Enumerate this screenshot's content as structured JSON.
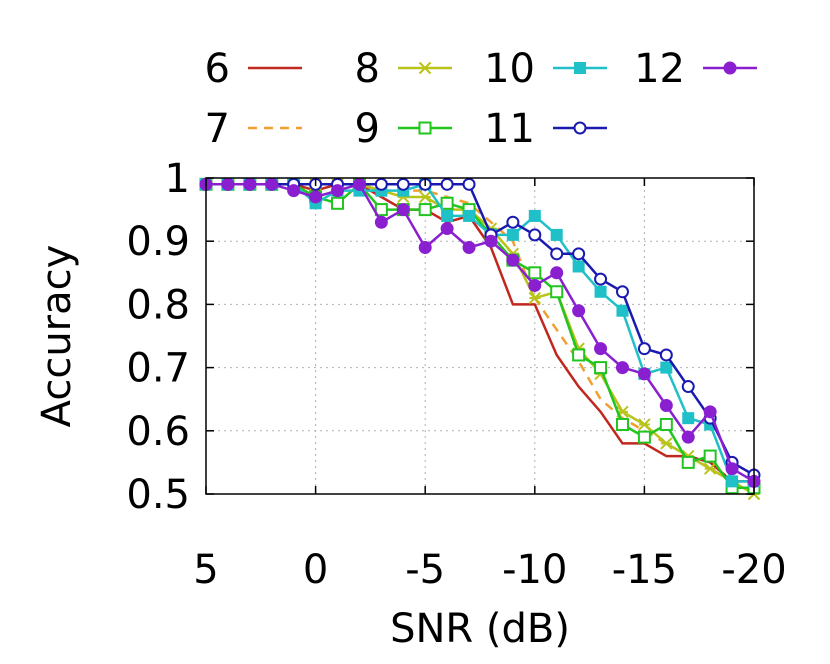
{
  "chart_data": {
    "type": "line",
    "xlabel": "SNR (dB)",
    "ylabel": "Accuracy",
    "xlim": [
      5,
      -20
    ],
    "ylim": [
      0.5,
      1
    ],
    "x_reversed": true,
    "grid": true,
    "legend_position": "top",
    "x_ticks": [
      5,
      0,
      -5,
      -10,
      -15,
      -20
    ],
    "y_ticks": [
      0.5,
      0.6,
      0.7,
      0.8,
      0.9,
      1
    ],
    "x_tick_labels": [
      "5",
      "0",
      "-5",
      "-10",
      "-15",
      "-20"
    ],
    "y_tick_labels": [
      "0.5",
      "0.6",
      "0.7",
      "0.8",
      "0.9",
      "1"
    ],
    "x": [
      5,
      4,
      3,
      2,
      1,
      0,
      -1,
      -2,
      -3,
      -4,
      -5,
      -6,
      -7,
      -8,
      -9,
      -10,
      -11,
      -12,
      -13,
      -14,
      -15,
      -16,
      -17,
      -18,
      -19,
      -20
    ],
    "series": [
      {
        "name": "6",
        "color": "#c0281f",
        "dash": "solid",
        "marker": "none",
        "values": [
          0.99,
          0.99,
          0.99,
          0.99,
          0.99,
          0.98,
          0.99,
          0.99,
          0.97,
          0.95,
          0.95,
          0.93,
          0.94,
          0.89,
          0.8,
          0.8,
          0.72,
          0.67,
          0.63,
          0.58,
          0.58,
          0.56,
          0.56,
          0.55,
          0.52,
          0.52
        ]
      },
      {
        "name": "7",
        "color": "#f0a030",
        "dash": "dashed",
        "marker": "none",
        "values": [
          0.99,
          0.99,
          0.99,
          0.99,
          0.99,
          0.99,
          0.99,
          0.99,
          0.98,
          0.98,
          0.98,
          0.97,
          0.96,
          0.93,
          0.9,
          0.81,
          0.76,
          0.71,
          0.65,
          0.62,
          0.6,
          0.58,
          0.56,
          0.54,
          0.52,
          0.5
        ]
      },
      {
        "name": "8",
        "color": "#b8c41a",
        "dash": "solid",
        "marker": "x",
        "values": [
          0.99,
          0.99,
          0.99,
          0.99,
          0.99,
          0.99,
          0.99,
          0.99,
          0.98,
          0.97,
          0.97,
          0.95,
          0.95,
          0.92,
          0.88,
          0.81,
          0.82,
          0.73,
          0.69,
          0.63,
          0.61,
          0.58,
          0.56,
          0.54,
          0.52,
          0.5
        ]
      },
      {
        "name": "9",
        "color": "#22c41f",
        "dash": "solid",
        "marker": "open-square",
        "values": [
          0.99,
          0.99,
          0.99,
          0.99,
          0.99,
          0.97,
          0.96,
          0.99,
          0.95,
          0.95,
          0.95,
          0.96,
          0.95,
          0.91,
          0.87,
          0.85,
          0.82,
          0.72,
          0.7,
          0.61,
          0.59,
          0.61,
          0.55,
          0.56,
          0.51,
          0.51
        ]
      },
      {
        "name": "10",
        "color": "#1fc0c8",
        "dash": "solid",
        "marker": "filled-square",
        "values": [
          0.99,
          0.99,
          0.99,
          0.99,
          0.99,
          0.96,
          0.98,
          0.98,
          0.98,
          0.98,
          0.99,
          0.94,
          0.94,
          0.91,
          0.91,
          0.94,
          0.91,
          0.86,
          0.82,
          0.79,
          0.69,
          0.7,
          0.62,
          0.61,
          0.52,
          0.52
        ]
      },
      {
        "name": "11",
        "color": "#1a1ab0",
        "dash": "solid",
        "marker": "open-circle",
        "values": [
          0.99,
          0.99,
          0.99,
          0.99,
          0.99,
          0.99,
          0.99,
          0.99,
          0.99,
          0.99,
          0.99,
          0.99,
          0.99,
          0.91,
          0.93,
          0.91,
          0.88,
          0.88,
          0.84,
          0.82,
          0.73,
          0.72,
          0.67,
          0.62,
          0.55,
          0.53
        ]
      },
      {
        "name": "12",
        "color": "#8a1fd0",
        "dash": "solid",
        "marker": "filled-circle",
        "values": [
          0.99,
          0.99,
          0.99,
          0.99,
          0.98,
          0.97,
          0.98,
          0.99,
          0.93,
          0.95,
          0.89,
          0.92,
          0.89,
          0.9,
          0.87,
          0.83,
          0.85,
          0.79,
          0.73,
          0.7,
          0.69,
          0.64,
          0.59,
          0.63,
          0.54,
          0.52
        ]
      }
    ]
  }
}
